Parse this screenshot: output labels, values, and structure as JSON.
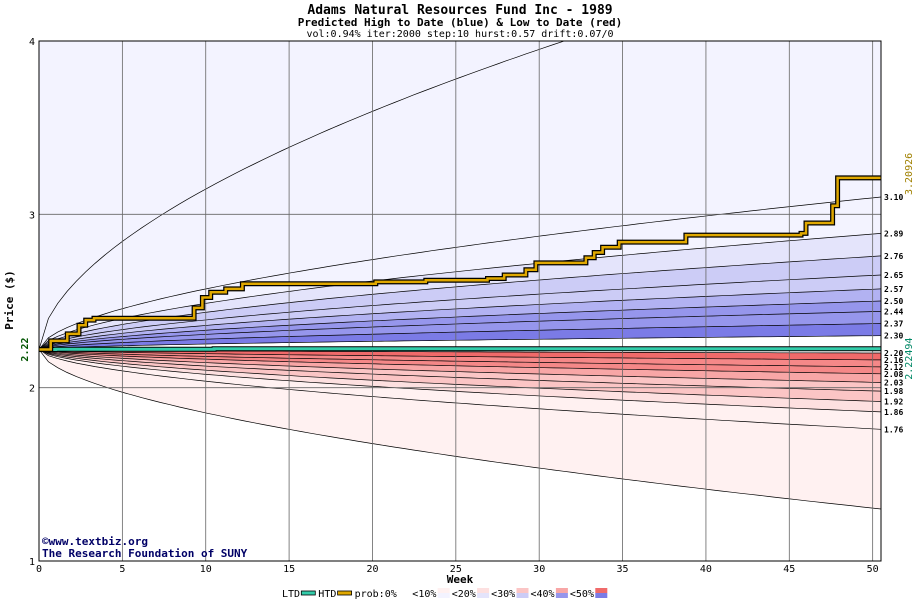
{
  "chart_data": {
    "type": "area",
    "title": "Adams Natural Resources Fund Inc - 1989",
    "subtitle": "Predicted High to Date (blue) &  Low to Date (red)",
    "params": "vol:0.94% iter:2000 step:10 hurst:0.57 drift:0.07/0",
    "xlabel": "Week",
    "ylabel": "Price ($)",
    "xlim": [
      0,
      50.5
    ],
    "ylim": [
      1,
      4
    ],
    "x_ticks": [
      0,
      5,
      10,
      15,
      20,
      25,
      30,
      35,
      40,
      45,
      50
    ],
    "y_ticks": [
      1,
      2,
      3,
      4
    ],
    "start_price": 2.22,
    "start_label": "2.22",
    "end_high_label": "3.20926",
    "end_low_label": "2.22494",
    "grid": true,
    "legend": {
      "position": "bottom",
      "items": [
        "LTD",
        "HTD",
        "prob:0%",
        "<10%",
        "<20%",
        "<30%",
        "<40%",
        "<50%"
      ]
    },
    "colors": {
      "htd_line": "#e0a800",
      "ltd_line": "#33ccaa",
      "blue_bands": [
        "#f3f3ff",
        "#e4e4fb",
        "#ccccf6",
        "#b2b2f2",
        "#9696ec",
        "#7b7be6"
      ],
      "red_bands": [
        "#fff1f1",
        "#fde0e0",
        "#fbc5c5",
        "#f8a6a6",
        "#f58888",
        "#f06a6a"
      ]
    },
    "upper_curves": [
      {
        "label": "",
        "end": 4.55
      },
      {
        "label": "3.10",
        "end": 3.1
      },
      {
        "label": "2.89",
        "end": 2.89
      },
      {
        "label": "2.76",
        "end": 2.76
      },
      {
        "label": "2.65",
        "end": 2.65
      },
      {
        "label": "2.57",
        "end": 2.57
      },
      {
        "label": "2.50",
        "end": 2.5
      },
      {
        "label": "2.44",
        "end": 2.44
      },
      {
        "label": "2.37",
        "end": 2.37
      },
      {
        "label": "2.30",
        "end": 2.3
      }
    ],
    "lower_curves": [
      {
        "label": "2.20",
        "end": 2.2
      },
      {
        "label": "2.16",
        "end": 2.16
      },
      {
        "label": "2.12",
        "end": 2.12
      },
      {
        "label": "2.08",
        "end": 2.08
      },
      {
        "label": "2.03",
        "end": 2.03
      },
      {
        "label": "1.98",
        "end": 1.98
      },
      {
        "label": "1.92",
        "end": 1.92
      },
      {
        "label": "1.86",
        "end": 1.86
      },
      {
        "label": "1.76",
        "end": 1.76
      },
      {
        "label": "",
        "end": 1.3
      }
    ],
    "htd_series": {
      "name": "HTD",
      "x": [
        0,
        0.7,
        1.7,
        2.4,
        2.8,
        3.3,
        8.8,
        9.3,
        9.8,
        10.3,
        11.2,
        12.2,
        17.9,
        20.2,
        23.2,
        26.9,
        27.9,
        29.2,
        29.8,
        32.8,
        33.3,
        33.8,
        34.8,
        38.8,
        45.7,
        46.0,
        47.6,
        47.9,
        50.5
      ],
      "y": [
        2.22,
        2.27,
        2.31,
        2.36,
        2.39,
        2.4,
        2.4,
        2.46,
        2.52,
        2.55,
        2.57,
        2.6,
        2.6,
        2.61,
        2.62,
        2.63,
        2.65,
        2.68,
        2.72,
        2.75,
        2.78,
        2.81,
        2.84,
        2.88,
        2.89,
        2.95,
        3.05,
        3.21,
        3.21
      ]
    },
    "ltd_series": {
      "name": "LTD",
      "x": [
        0,
        1,
        10.5,
        50.5
      ],
      "y": [
        2.22,
        2.222,
        2.225,
        2.225
      ]
    }
  },
  "credits": {
    "line1": "©www.textbiz.org",
    "line2": "The Research Foundation of SUNY"
  }
}
